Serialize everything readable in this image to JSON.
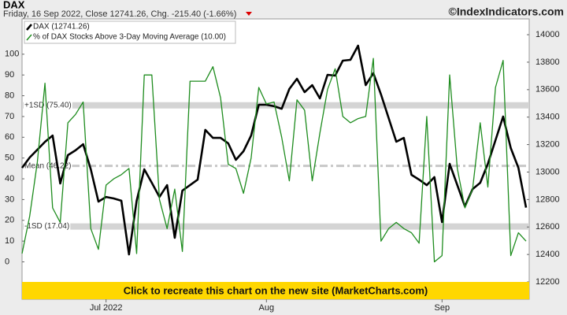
{
  "chart_data": {
    "type": "line",
    "title": "DAX",
    "subtitle": "Friday, 16 Sep 2022, Close 12741.26, Chg. -215.40 (-1.66%)",
    "source": "©IndexIndicators.com",
    "banner": "Click to recreate this chart on the new site (MarketCharts.com)",
    "categories": [
      null,
      null,
      null,
      null,
      null,
      null,
      null,
      null,
      null,
      null,
      null,
      "Jul 2022",
      null,
      null,
      null,
      null,
      null,
      null,
      null,
      null,
      null,
      null,
      null,
      null,
      null,
      null,
      null,
      null,
      null,
      null,
      null,
      null,
      "Aug",
      null,
      null,
      null,
      null,
      null,
      null,
      null,
      null,
      null,
      null,
      null,
      null,
      null,
      null,
      null,
      null,
      null,
      null,
      null,
      null,
      null,
      null,
      "Sep",
      null,
      null,
      null,
      null,
      null,
      null,
      null,
      null,
      null,
      null,
      null
    ],
    "series": [
      {
        "name": "DAX (12741.26)",
        "color": "#000000",
        "axis": "y2",
        "values": [
          13031,
          13106,
          13163,
          13220,
          13266,
          12917,
          13123,
          13158,
          13203,
          13020,
          12785,
          12819,
          12808,
          12791,
          12400,
          12790,
          13020,
          12922,
          12819,
          12905,
          12521,
          12865,
          12905,
          12945,
          13307,
          13249,
          13249,
          13209,
          13089,
          13152,
          13266,
          13490,
          13490,
          13479,
          13461,
          13605,
          13679,
          13582,
          13633,
          13536,
          13708,
          13702,
          13811,
          13817,
          13920,
          13633,
          13720,
          13565,
          13393,
          13221,
          13249,
          12980,
          12945,
          12905,
          12963,
          12636,
          13060,
          12905,
          12750,
          12876,
          12922,
          13060,
          13232,
          13404,
          13175,
          13031,
          12741.26
        ]
      },
      {
        "name": "% of DAX Stocks Above 3-Day Moving Average (10.00)",
        "color": "#1e8c1e",
        "axis": "y",
        "values": [
          4,
          22,
          48,
          86,
          26,
          19,
          67,
          71,
          77,
          16,
          6,
          37,
          40,
          42,
          45,
          4,
          90,
          90,
          30,
          16,
          35,
          5,
          87,
          87,
          87,
          94,
          79,
          47,
          45,
          33,
          50,
          84,
          76,
          77,
          60,
          39,
          78,
          73,
          39,
          62,
          83,
          93,
          70,
          67,
          69,
          70,
          98,
          10,
          16,
          19,
          16,
          14,
          9,
          70,
          0,
          3,
          90,
          45,
          26,
          35,
          67,
          36,
          84,
          97,
          3,
          14,
          10
        ]
      }
    ],
    "bands": [
      {
        "value": 75.4,
        "label": "+1SD (75.40)"
      },
      {
        "value": 46.22,
        "label": "Mean (46.22)"
      },
      {
        "value": 17.04,
        "label": "-1SD (17.04)"
      }
    ],
    "ylim": [
      -18,
      117
    ],
    "yticks": [
      0,
      10,
      20,
      30,
      40,
      50,
      60,
      70,
      80,
      90,
      100
    ],
    "y2lim": [
      12074,
      14115
    ],
    "y2ticks": [
      12200,
      12400,
      12600,
      12800,
      13000,
      13200,
      13400,
      13600,
      13800,
      14000
    ]
  }
}
